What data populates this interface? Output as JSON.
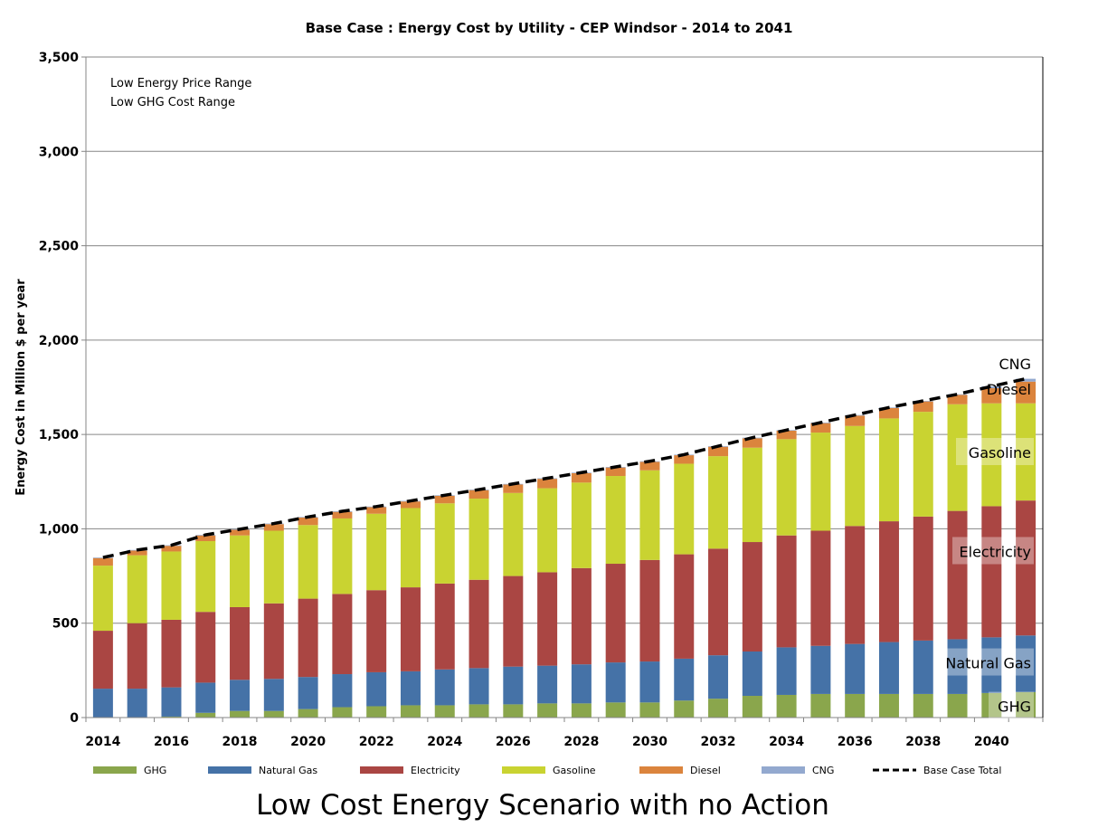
{
  "chart_data": {
    "type": "bar",
    "stacked": true,
    "title": "Base Case : Energy Cost by Utility - CEP Windsor - 2014 to 2041",
    "xlabel": "",
    "ylabel": "Energy Cost in Million $ per year",
    "ylim": [
      0,
      3500
    ],
    "yticks": [
      0,
      500,
      1000,
      1500,
      2000,
      2500,
      3000,
      3500
    ],
    "ytick_labels": [
      "0",
      "500",
      "1,000",
      "1,500",
      "2,000",
      "2,500",
      "3,000",
      "3,500"
    ],
    "grid": true,
    "annotations": [
      "Low Energy Price Range",
      "Low GHG Cost Range"
    ],
    "categories": [
      2014,
      2015,
      2016,
      2017,
      2018,
      2019,
      2020,
      2021,
      2022,
      2023,
      2024,
      2025,
      2026,
      2027,
      2028,
      2029,
      2030,
      2031,
      2032,
      2033,
      2034,
      2035,
      2036,
      2037,
      2038,
      2039,
      2040,
      2041
    ],
    "xtick_labels": [
      "2014",
      "2016",
      "2018",
      "2020",
      "2022",
      "2024",
      "2026",
      "2028",
      "2030",
      "2032",
      "2034",
      "2036",
      "2038",
      "2040"
    ],
    "series": [
      {
        "name": "GHG",
        "color": "#8aa64c",
        "values": [
          0,
          0,
          5,
          25,
          35,
          35,
          45,
          55,
          60,
          65,
          65,
          70,
          70,
          75,
          75,
          80,
          80,
          90,
          100,
          115,
          120,
          125,
          125,
          125,
          125,
          125,
          130,
          135
        ]
      },
      {
        "name": "Natural Gas",
        "color": "#4572a7",
        "values": [
          153,
          153,
          155,
          160,
          165,
          170,
          170,
          175,
          180,
          180,
          190,
          192,
          200,
          200,
          207,
          212,
          217,
          222,
          230,
          235,
          252,
          255,
          265,
          275,
          283,
          290,
          295,
          300
        ]
      },
      {
        "name": "Electricity",
        "color": "#aa4643",
        "values": [
          307,
          347,
          358,
          375,
          385,
          400,
          415,
          425,
          435,
          445,
          455,
          468,
          480,
          495,
          510,
          523,
          538,
          553,
          565,
          580,
          593,
          610,
          625,
          640,
          657,
          680,
          695,
          715
        ]
      },
      {
        "name": "Gasoline",
        "color": "#c9d331",
        "values": [
          345,
          360,
          362,
          375,
          380,
          385,
          390,
          400,
          405,
          420,
          425,
          430,
          440,
          445,
          453,
          465,
          475,
          480,
          490,
          500,
          510,
          520,
          530,
          545,
          555,
          565,
          545,
          515
        ]
      },
      {
        "name": "Diesel",
        "color": "#db843d",
        "values": [
          40,
          25,
          30,
          30,
          30,
          35,
          40,
          35,
          35,
          35,
          40,
          45,
          45,
          50,
          50,
          45,
          45,
          45,
          50,
          50,
          45,
          50,
          55,
          55,
          55,
          50,
          80,
          115
        ]
      },
      {
        "name": "CNG",
        "color": "#93a9cf",
        "values": [
          3,
          3,
          3,
          3,
          3,
          3,
          3,
          3,
          3,
          3,
          3,
          3,
          3,
          3,
          3,
          3,
          3,
          3,
          3,
          3,
          3,
          3,
          3,
          3,
          3,
          3,
          10,
          15
        ]
      }
    ],
    "line_series": {
      "name": "Base Case Total",
      "style": "dashed",
      "color": "#000000",
      "values": "sum of stacked series"
    },
    "series_labels": [
      "CNG",
      "Diesel",
      "Gasoline",
      "Electricity",
      "Natural Gas",
      "GHG"
    ],
    "legend": {
      "placement": "bottom",
      "entries": [
        "GHG",
        "Natural Gas",
        "Electricity",
        "Gasoline",
        "Diesel",
        "CNG",
        "Base Case Total"
      ]
    }
  },
  "caption": "Low Cost Energy Scenario with no Action"
}
